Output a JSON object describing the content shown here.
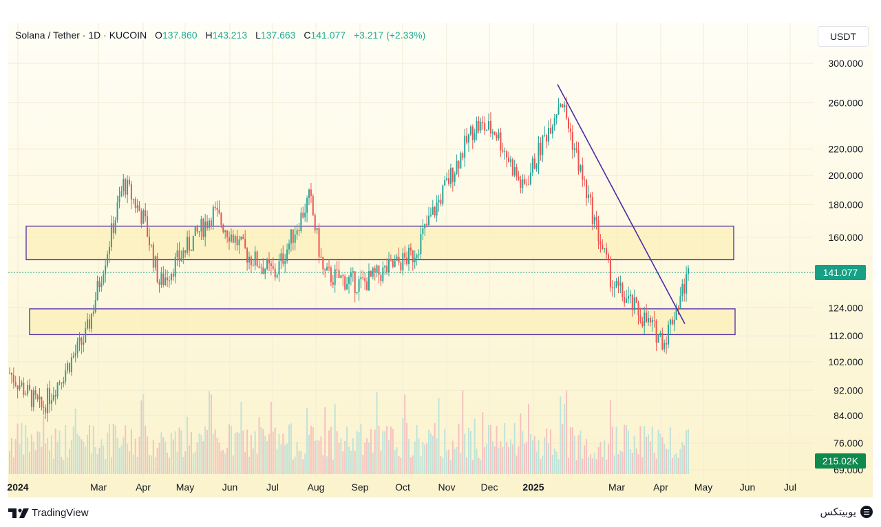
{
  "header": {
    "symbol": "Solana / Tether · 1D · KUCOIN",
    "open_label": "O",
    "open": "137.860",
    "high_label": "H",
    "high": "143.213",
    "low_label": "L",
    "low": "137.663",
    "close_label": "C",
    "close": "141.077",
    "change": "+3.217 (+2.33%)"
  },
  "currency_button": "USDT",
  "last_price_tag": "141.077",
  "volume_tag": "215.02K",
  "footer": {
    "brand_left": "TradingView",
    "brand_right": "یوبیتکس"
  },
  "colors": {
    "background": "#fdf8e4",
    "up": "#26a69a",
    "down": "#ef5350",
    "trendline": "#4b2aa6",
    "zone_fill": "#fbefb8"
  },
  "chart_data": {
    "type": "candlestick",
    "title": "Solana / Tether · 1D · KUCOIN",
    "y_scale": "log",
    "ylim": [
      66,
      320
    ],
    "y_ticks": [
      "300.000",
      "260.000",
      "220.000",
      "200.000",
      "180.000",
      "160.000",
      "141.077",
      "124.000",
      "112.000",
      "102.000",
      "92.000",
      "84.000",
      "76.000",
      "69.000"
    ],
    "x_ticks": [
      "2024",
      "Mar",
      "Apr",
      "May",
      "Jun",
      "Jul",
      "Aug",
      "Sep",
      "Oct",
      "Nov",
      "Dec",
      "2025",
      "Mar",
      "Apr",
      "May",
      "Jun",
      "Jul"
    ],
    "price_path": [
      {
        "month": "Jan 2024",
        "price": 98
      },
      {
        "month": "early Feb 2024",
        "price": 86
      },
      {
        "month": "late Feb 2024",
        "price": 112
      },
      {
        "month": "mid Mar 2024",
        "price": 195
      },
      {
        "month": "Apr 2024",
        "price": 170
      },
      {
        "month": "late Apr 2024",
        "price": 135
      },
      {
        "month": "mid May 2024",
        "price": 175
      },
      {
        "month": "Jun 2024",
        "price": 150
      },
      {
        "month": "Jul 2024",
        "price": 140
      },
      {
        "month": "late Jul 2024",
        "price": 185
      },
      {
        "month": "Aug 2024",
        "price": 140
      },
      {
        "month": "Sep 2024",
        "price": 135
      },
      {
        "month": "Oct 2024",
        "price": 150
      },
      {
        "month": "mid Nov 2024",
        "price": 240
      },
      {
        "month": "Dec 2024",
        "price": 235
      },
      {
        "month": "late Dec 2024",
        "price": 190
      },
      {
        "month": "mid Jan 2025",
        "price": 265
      },
      {
        "month": "Feb 2025",
        "price": 200
      },
      {
        "month": "Mar 2025",
        "price": 135
      },
      {
        "month": "early Apr 2025",
        "price": 110
      },
      {
        "month": "late Apr 2025",
        "price": 141
      }
    ],
    "zones": [
      {
        "name": "upper-resistance-zone",
        "low": 147.5,
        "high": 166.5
      },
      {
        "name": "lower-support-zone",
        "low": 112.5,
        "high": 123.5
      }
    ],
    "trendline": {
      "start": {
        "date": "Jan 2025",
        "price": 278
      },
      "end": {
        "date": "late Apr 2025",
        "price": 117
      }
    },
    "last_price": 141.077,
    "last_volume": "215.02K"
  }
}
